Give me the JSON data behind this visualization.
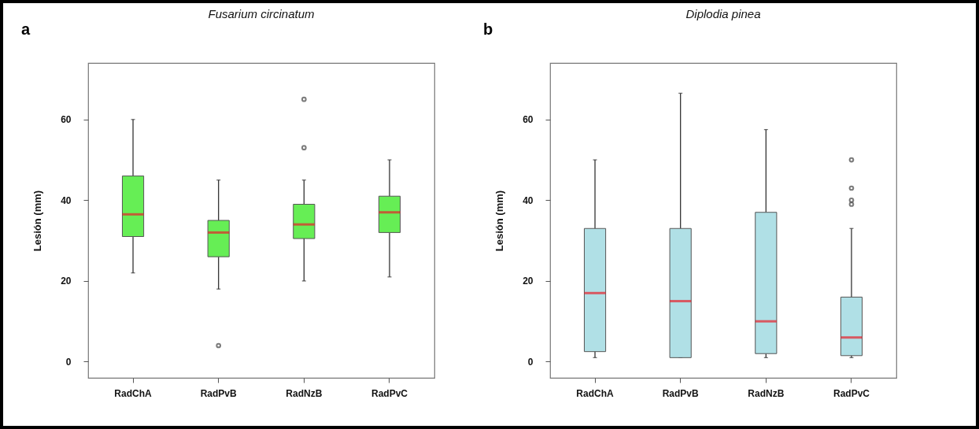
{
  "chart_data": [
    {
      "type": "box",
      "title": "Fusarium circinatum",
      "ylabel": "Lesión (mm)",
      "annotations": [
        "a"
      ],
      "categories": [
        "RadChA",
        "RadPvB",
        "RadNzB",
        "RadPvC"
      ],
      "ylim": [
        -4,
        74
      ],
      "yticks": [
        0,
        20,
        40,
        60
      ],
      "grid": false,
      "series": [
        {
          "color": "#66ee55",
          "boxes": [
            {
              "low": 22,
              "q1": 31,
              "median": 36.5,
              "q3": 46,
              "high": 60
            },
            {
              "low": 18,
              "q1": 26,
              "median": 32,
              "q3": 35,
              "high": 45,
              "outliers": [
                4
              ]
            },
            {
              "low": 20,
              "q1": 30.5,
              "median": 34,
              "q3": 39,
              "high": 45,
              "outliers": [
                53,
                65
              ]
            },
            {
              "low": 21,
              "q1": 32,
              "median": 37,
              "q3": 41,
              "high": 50
            }
          ]
        }
      ]
    },
    {
      "type": "box",
      "title": "Diplodia pinea",
      "ylabel": "Lesión (mm)",
      "annotations": [
        "b"
      ],
      "categories": [
        "RadChA",
        "RadPvB",
        "RadNzB",
        "RadPvC"
      ],
      "ylim": [
        -4,
        74
      ],
      "yticks": [
        0,
        20,
        40,
        60
      ],
      "grid": false,
      "series": [
        {
          "color": "#b0e0e6",
          "boxes": [
            {
              "low": 1,
              "q1": 2.5,
              "median": 17,
              "q3": 33,
              "high": 50
            },
            {
              "low": 1,
              "q1": 1,
              "median": 15,
              "q3": 33,
              "high": 66.5
            },
            {
              "low": 1,
              "q1": 2,
              "median": 10,
              "q3": 37,
              "high": 57.5
            },
            {
              "low": 1,
              "q1": 1.5,
              "median": 6,
              "q3": 16,
              "high": 33,
              "outliers": [
                39,
                40,
                43,
                50
              ]
            }
          ]
        }
      ]
    }
  ]
}
